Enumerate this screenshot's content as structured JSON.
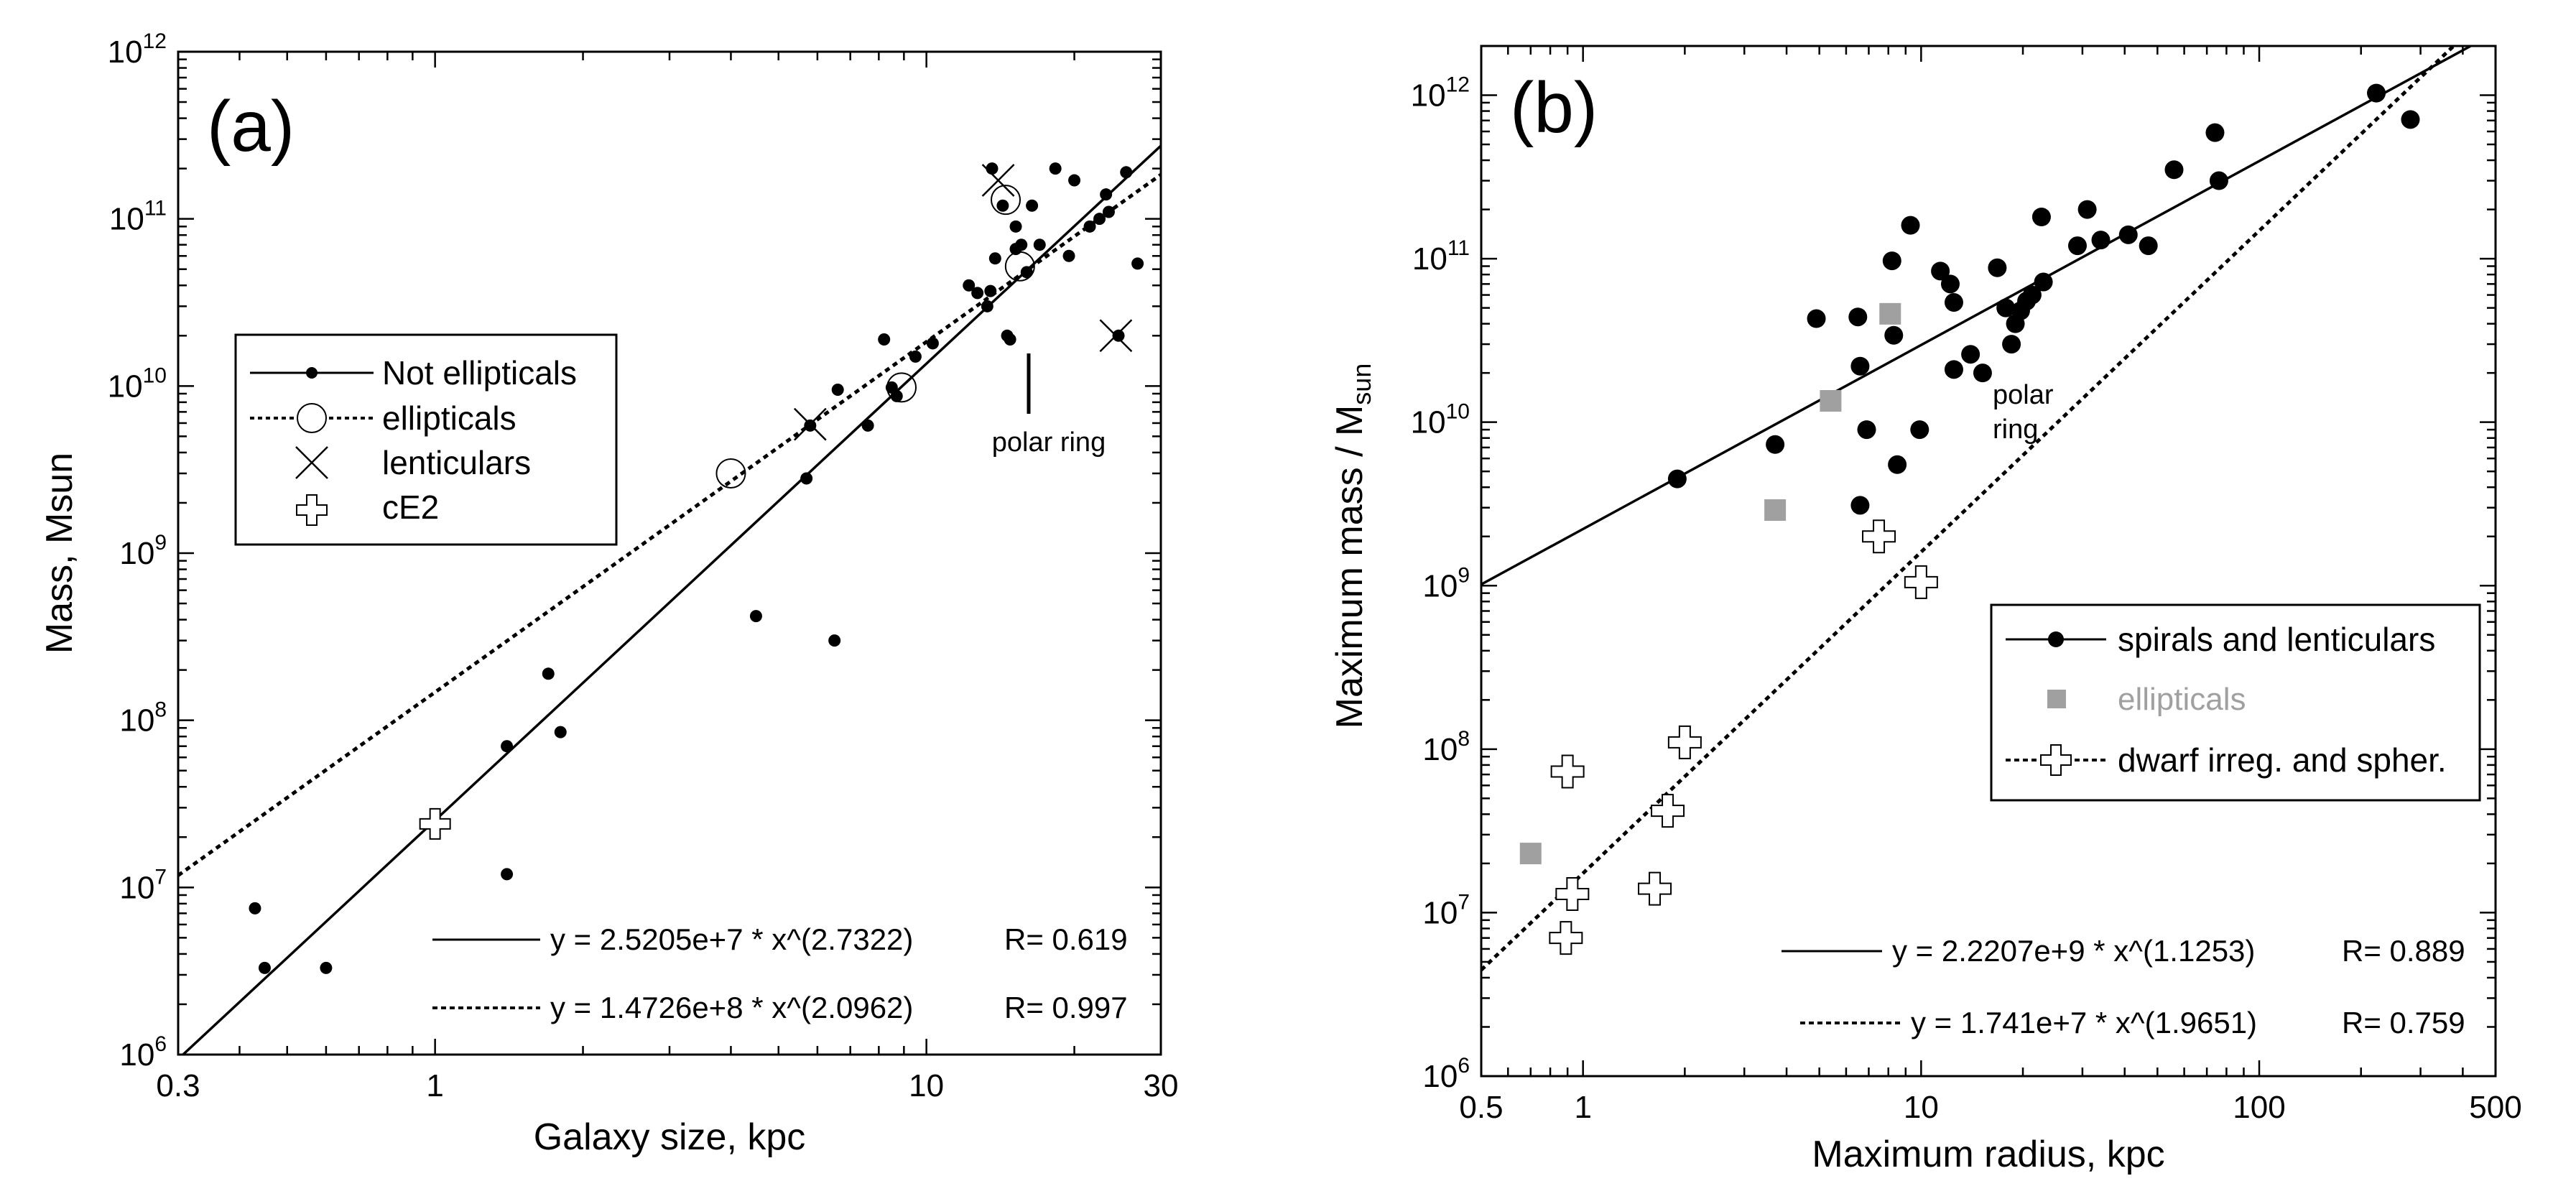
{
  "chart_data": [
    {
      "id": "a",
      "type": "scatter",
      "panel_label": "(a)",
      "xlabel": "Galaxy size, kpc",
      "ylabel": "Mass, Msun",
      "xscale": "log",
      "yscale": "log",
      "xlim": [
        0.3,
        30
      ],
      "ylim": [
        1000000,
        1000000000000
      ],
      "x_ticks": [
        {
          "v": 0.3,
          "t": "0.3"
        },
        {
          "v": 1,
          "t": "1"
        },
        {
          "v": 10,
          "t": "10"
        },
        {
          "v": 30,
          "t": "30"
        }
      ],
      "y_ticks": [
        {
          "v": 1000000,
          "b": "10",
          "e": "6"
        },
        {
          "v": 10000000,
          "b": "10",
          "e": "7"
        },
        {
          "v": 100000000,
          "b": "10",
          "e": "8"
        },
        {
          "v": 1000000000,
          "b": "10",
          "e": "9"
        },
        {
          "v": 10000000000,
          "b": "10",
          "e": "10"
        },
        {
          "v": 100000000000,
          "b": "10",
          "e": "11"
        },
        {
          "v": 1000000000000,
          "b": "10",
          "e": "12"
        }
      ],
      "legend": {
        "placement": "middle-left",
        "entries": [
          {
            "label": "Not ellipticals",
            "marker": "dot",
            "line": "solid"
          },
          {
            "label": "ellipticals",
            "marker": "open-circle",
            "line": "dotted"
          },
          {
            "label": "lenticulars",
            "marker": "x",
            "line": "none"
          },
          {
            "label": "cE2",
            "marker": "open-cross",
            "line": "none"
          }
        ]
      },
      "series": [
        {
          "name": "Not ellipticals",
          "marker": "dot",
          "color": "#000000",
          "points": [
            [
              0.43,
              7500000
            ],
            [
              0.45,
              3300000
            ],
            [
              0.6,
              3300000
            ],
            [
              1.4,
              70000000
            ],
            [
              1.4,
              12000000
            ],
            [
              1.7,
              190000000
            ],
            [
              1.8,
              85000000
            ],
            [
              4.5,
              420000000
            ],
            [
              5.7,
              2800000000
            ],
            [
              6.5,
              300000000
            ],
            [
              5.8,
              5800000000
            ],
            [
              6.6,
              9500000000
            ],
            [
              7.6,
              5800000000
            ],
            [
              8.2,
              19000000000
            ],
            [
              8.5,
              9800000000
            ],
            [
              8.7,
              8700000000
            ],
            [
              9.5,
              15000000000
            ],
            [
              10.3,
              18000000000
            ],
            [
              12.2,
              40000000000
            ],
            [
              12.7,
              36000000000
            ],
            [
              13.3,
              30000000000
            ],
            [
              13.5,
              37000000000
            ],
            [
              13.8,
              58000000000
            ],
            [
              13.6,
              200000000000
            ],
            [
              14.3,
              120000000000
            ],
            [
              14.6,
              20000000000
            ],
            [
              14.8,
              19000000000
            ],
            [
              15.2,
              90000000000
            ],
            [
              15.6,
              70000000000
            ],
            [
              16.0,
              48000000000
            ],
            [
              16.4,
              120000000000
            ],
            [
              15.2,
              66000000000
            ],
            [
              17.0,
              70000000000
            ],
            [
              18.3,
              200000000000
            ],
            [
              19.5,
              60000000000
            ],
            [
              20.0,
              170000000000
            ],
            [
              21.5,
              90000000000
            ],
            [
              22.5,
              100000000000
            ],
            [
              23.2,
              140000000000
            ],
            [
              23.5,
              110000000000
            ],
            [
              24.6,
              20000000000
            ],
            [
              25.5,
              190000000000
            ],
            [
              26.9,
              54000000000
            ]
          ]
        },
        {
          "name": "ellipticals",
          "marker": "open-circle",
          "color": "#000000",
          "points": [
            [
              4.0,
              3000000000
            ],
            [
              8.9,
              9800000000
            ],
            [
              15.5,
              52000000000
            ],
            [
              14.5,
              130000000000
            ]
          ]
        },
        {
          "name": "lenticulars",
          "marker": "x",
          "color": "#000000",
          "points": [
            [
              5.8,
              5900000000
            ],
            [
              14.0,
              170000000000
            ],
            [
              24.3,
              20000000000
            ]
          ]
        },
        {
          "name": "cE2",
          "marker": "open-cross",
          "color": "#000000",
          "points": [
            [
              1.0,
              24000000
            ]
          ]
        }
      ],
      "fits": [
        {
          "name": "Not ellipticals fit",
          "style": "solid",
          "a": 25205000,
          "b": 2.7322,
          "equation": "y = 2.5205e+7 * x^(2.7322)",
          "r": "R= 0.619"
        },
        {
          "name": "ellipticals fit",
          "style": "dotted",
          "a": 147260000,
          "b": 2.0962,
          "equation": "y = 1.4726e+8 * x^(2.0962)",
          "r": "R= 0.997"
        }
      ],
      "annotations": [
        {
          "text": "polar ring",
          "x": 15.5,
          "y": 3300000000
        }
      ]
    },
    {
      "id": "b",
      "type": "scatter",
      "panel_label": "(b)",
      "xlabel": "Maximum radius, kpc",
      "ylabel_main": "Maximum mass / M",
      "ylabel_sub": "sun",
      "xscale": "log",
      "yscale": "log",
      "xlim": [
        0.5,
        500
      ],
      "ylim": [
        1000000,
        2000000000000
      ],
      "x_ticks": [
        {
          "v": 0.5,
          "t": "0.5"
        },
        {
          "v": 1,
          "t": "1"
        },
        {
          "v": 10,
          "t": "10"
        },
        {
          "v": 100,
          "t": "100"
        },
        {
          "v": 500,
          "t": "500"
        }
      ],
      "y_ticks": [
        {
          "v": 1000000,
          "b": "10",
          "e": "6"
        },
        {
          "v": 10000000,
          "b": "10",
          "e": "7"
        },
        {
          "v": 100000000,
          "b": "10",
          "e": "8"
        },
        {
          "v": 1000000000,
          "b": "10",
          "e": "9"
        },
        {
          "v": 10000000000,
          "b": "10",
          "e": "10"
        },
        {
          "v": 100000000000,
          "b": "10",
          "e": "11"
        },
        {
          "v": 1000000000000,
          "b": "10",
          "e": "12"
        }
      ],
      "legend": {
        "placement": "lower-right",
        "entries": [
          {
            "label": "spirals and lenticulars",
            "marker": "dot",
            "line": "solid"
          },
          {
            "label": "ellipticals",
            "marker": "gray-square",
            "line": "none"
          },
          {
            "label": "dwarf irreg. and spher.",
            "marker": "open-cross",
            "line": "dotted"
          }
        ]
      },
      "series": [
        {
          "name": "spirals and lenticulars",
          "marker": "dot",
          "color": "#000000",
          "points": [
            [
              1.9,
              4500000000
            ],
            [
              3.7,
              7300000000
            ],
            [
              4.9,
              43000000000
            ],
            [
              6.5,
              44000000000
            ],
            [
              6.6,
              22000000000
            ],
            [
              6.6,
              3100000000
            ],
            [
              6.9,
              9000000000
            ],
            [
              8.2,
              97000000000
            ],
            [
              8.3,
              34000000000
            ],
            [
              8.5,
              5500000000
            ],
            [
              9.3,
              160000000000
            ],
            [
              9.9,
              9000000000
            ],
            [
              11.4,
              84000000000
            ],
            [
              12.2,
              70000000000
            ],
            [
              12.5,
              54000000000
            ],
            [
              12.5,
              21000000000
            ],
            [
              14.0,
              26000000000
            ],
            [
              15.2,
              20000000000
            ],
            [
              16.8,
              88000000000
            ],
            [
              17.8,
              50000000000
            ],
            [
              18.5,
              30000000000
            ],
            [
              19.0,
              40000000000
            ],
            [
              19.7,
              48000000000
            ],
            [
              20.5,
              55000000000
            ],
            [
              21.3,
              60000000000
            ],
            [
              22.7,
              180000000000
            ],
            [
              23.0,
              72000000000
            ],
            [
              29.0,
              120000000000
            ],
            [
              31.0,
              200000000000
            ],
            [
              34.0,
              130000000000
            ],
            [
              41.0,
              140000000000
            ],
            [
              47.0,
              120000000000
            ],
            [
              56.0,
              350000000000
            ],
            [
              74.0,
              590000000000
            ],
            [
              76.0,
              300000000000
            ],
            [
              222.0,
              1030000000000
            ],
            [
              280.0,
              710000000000
            ]
          ]
        },
        {
          "name": "ellipticals",
          "marker": "gray-square",
          "color": "#a0a0a0",
          "points": [
            [
              0.7,
              23000000
            ],
            [
              3.7,
              2900000000
            ],
            [
              5.4,
              13500000000
            ],
            [
              8.1,
              46000000000
            ]
          ]
        },
        {
          "name": "dwarf irreg. and spher.",
          "marker": "open-cross",
          "color": "#000000",
          "points": [
            [
              0.89,
              7000000
            ],
            [
              0.93,
              13000000
            ],
            [
              0.9,
              73000000
            ],
            [
              1.63,
              14000000
            ],
            [
              1.78,
              42000000
            ],
            [
              2.0,
              110000000
            ],
            [
              7.5,
              2000000000
            ],
            [
              10.0,
              1050000000
            ]
          ]
        }
      ],
      "fits": [
        {
          "name": "spirals fit",
          "style": "solid",
          "a": 2220700000,
          "b": 1.1253,
          "equation": "y = 2.2207e+9 * x^(1.1253)",
          "r": "R= 0.889"
        },
        {
          "name": "dwarf fit",
          "style": "dotted",
          "a": 17410000,
          "b": 1.9651,
          "equation": "y = 1.741e+7 * x^(1.9651)",
          "r": "R= 0.759"
        }
      ],
      "annotations": [
        {
          "text_lines": [
            "polar",
            "ring"
          ],
          "x": 16.0,
          "y": 17000000000
        }
      ]
    }
  ]
}
